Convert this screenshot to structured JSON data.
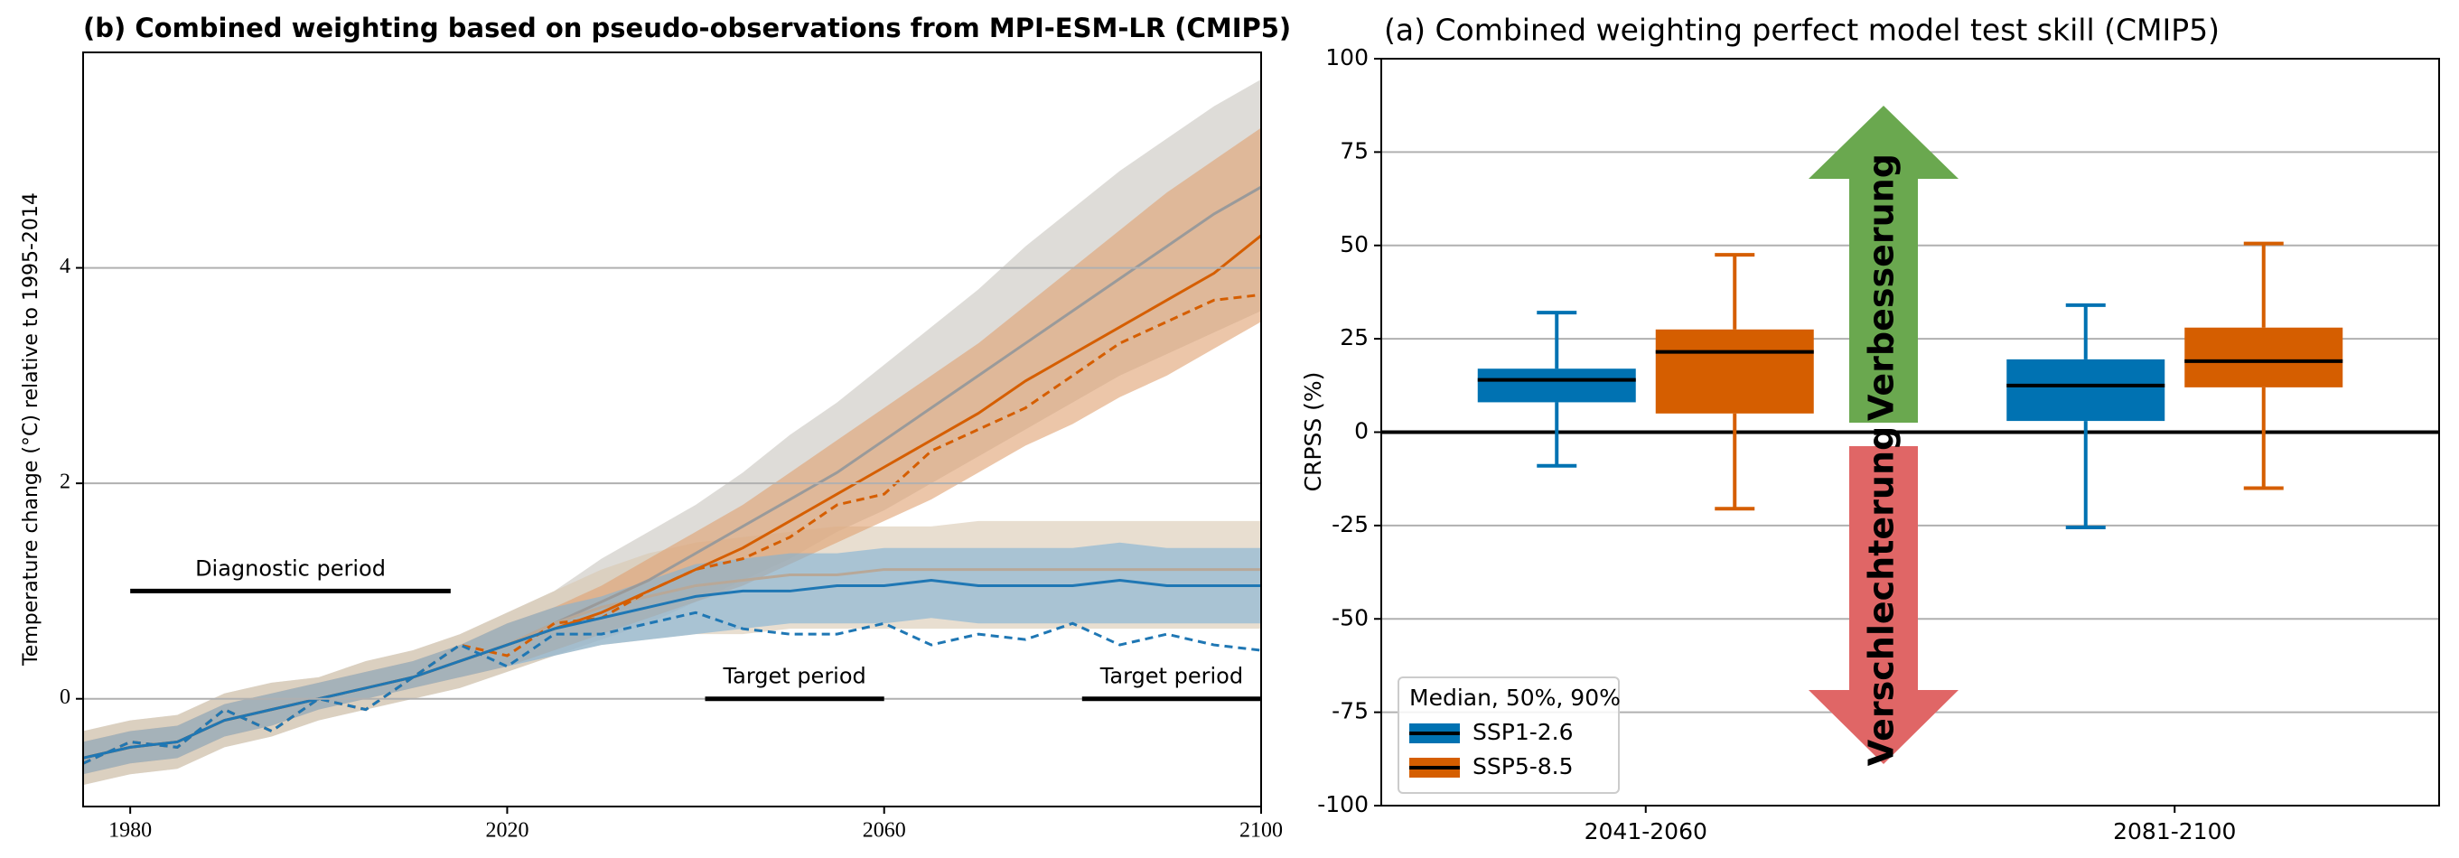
{
  "chart_data": [
    {
      "type": "line",
      "title": "(b) Combined weighting based on pseudo-observations from MPI-ESM-LR (CMIP5)",
      "y_label": "Temperature change (°C) relative to 1995-2014",
      "x": [
        1975,
        1980,
        1985,
        1990,
        1995,
        2000,
        2005,
        2010,
        2015,
        2020,
        2025,
        2030,
        2035,
        2040,
        2045,
        2050,
        2055,
        2060,
        2065,
        2070,
        2075,
        2080,
        2085,
        2090,
        2095,
        2100
      ],
      "xlim": [
        1975,
        2100
      ],
      "xticks": [
        1980,
        2020,
        2060,
        2100
      ],
      "ylim": [
        -1.0,
        6.0
      ],
      "yticks": [
        0,
        2,
        4
      ],
      "grid": true,
      "bands": [
        {
          "color": "#c8c4be",
          "lower": [
            -0.8,
            -0.7,
            -0.65,
            -0.45,
            -0.35,
            -0.2,
            -0.1,
            0.0,
            0.1,
            0.25,
            0.4,
            0.55,
            0.7,
            0.9,
            1.1,
            1.3,
            1.55,
            1.75,
            2.0,
            2.25,
            2.5,
            2.75,
            3.0,
            3.2,
            3.4,
            3.6
          ],
          "upper": [
            -0.3,
            -0.2,
            -0.15,
            0.05,
            0.15,
            0.2,
            0.35,
            0.45,
            0.6,
            0.8,
            1.0,
            1.3,
            1.55,
            1.8,
            2.1,
            2.45,
            2.75,
            3.1,
            3.45,
            3.8,
            4.2,
            4.55,
            4.9,
            5.2,
            5.5,
            5.75
          ]
        },
        {
          "color": "#d9c8b0",
          "lower": [
            -0.8,
            -0.7,
            -0.65,
            -0.45,
            -0.35,
            -0.2,
            -0.1,
            0.0,
            0.1,
            0.25,
            0.4,
            0.5,
            0.55,
            0.6,
            0.6,
            0.65,
            0.65,
            0.65,
            0.65,
            0.65,
            0.65,
            0.65,
            0.65,
            0.65,
            0.65,
            0.65
          ],
          "upper": [
            -0.3,
            -0.2,
            -0.15,
            0.05,
            0.15,
            0.2,
            0.35,
            0.45,
            0.6,
            0.8,
            1.0,
            1.2,
            1.35,
            1.45,
            1.5,
            1.55,
            1.6,
            1.6,
            1.6,
            1.65,
            1.65,
            1.65,
            1.65,
            1.65,
            1.65,
            1.65
          ]
        },
        {
          "color": "#e0a070",
          "lower": [
            -0.7,
            -0.6,
            -0.55,
            -0.35,
            -0.25,
            -0.1,
            0.0,
            0.1,
            0.2,
            0.3,
            0.45,
            0.6,
            0.75,
            0.9,
            1.05,
            1.25,
            1.45,
            1.65,
            1.85,
            2.1,
            2.35,
            2.55,
            2.8,
            3.0,
            3.25,
            3.5
          ],
          "upper": [
            -0.4,
            -0.3,
            -0.25,
            -0.05,
            0.05,
            0.15,
            0.25,
            0.35,
            0.5,
            0.7,
            0.85,
            1.05,
            1.3,
            1.55,
            1.8,
            2.1,
            2.4,
            2.7,
            3.0,
            3.3,
            3.65,
            4.0,
            4.35,
            4.7,
            5.0,
            5.3
          ]
        },
        {
          "color": "#7fb0d6",
          "lower": [
            -0.7,
            -0.6,
            -0.55,
            -0.35,
            -0.25,
            -0.1,
            0.0,
            0.1,
            0.2,
            0.3,
            0.4,
            0.5,
            0.55,
            0.6,
            0.65,
            0.7,
            0.7,
            0.7,
            0.75,
            0.7,
            0.7,
            0.7,
            0.7,
            0.7,
            0.7,
            0.7
          ],
          "upper": [
            -0.4,
            -0.3,
            -0.25,
            -0.05,
            0.05,
            0.15,
            0.25,
            0.35,
            0.5,
            0.7,
            0.85,
            0.95,
            1.1,
            1.25,
            1.3,
            1.35,
            1.35,
            1.4,
            1.4,
            1.4,
            1.4,
            1.4,
            1.45,
            1.4,
            1.4,
            1.4
          ]
        }
      ],
      "series": [
        {
          "color": "#9a9a9a",
          "dashed": false,
          "values": [
            -0.55,
            -0.45,
            -0.4,
            -0.2,
            -0.1,
            0.0,
            0.1,
            0.2,
            0.35,
            0.5,
            0.7,
            0.9,
            1.1,
            1.35,
            1.6,
            1.85,
            2.1,
            2.4,
            2.7,
            3.0,
            3.3,
            3.6,
            3.9,
            4.2,
            4.5,
            4.75
          ]
        },
        {
          "color": "#b8a898",
          "dashed": false,
          "values": [
            -0.55,
            -0.45,
            -0.4,
            -0.2,
            -0.1,
            0.0,
            0.1,
            0.2,
            0.35,
            0.5,
            0.7,
            0.85,
            0.95,
            1.05,
            1.1,
            1.15,
            1.15,
            1.2,
            1.2,
            1.2,
            1.2,
            1.2,
            1.2,
            1.2,
            1.2,
            1.2
          ]
        },
        {
          "color": "#d55e00",
          "dashed": false,
          "values": [
            -0.55,
            -0.45,
            -0.4,
            -0.2,
            -0.1,
            0.0,
            0.1,
            0.2,
            0.35,
            0.5,
            0.65,
            0.8,
            1.0,
            1.2,
            1.4,
            1.65,
            1.9,
            2.15,
            2.4,
            2.65,
            2.95,
            3.2,
            3.45,
            3.7,
            3.95,
            4.3
          ]
        },
        {
          "color": "#d55e00",
          "dashed": true,
          "values": [
            -0.6,
            -0.4,
            -0.45,
            -0.1,
            -0.3,
            0.0,
            -0.1,
            0.2,
            0.5,
            0.4,
            0.7,
            0.75,
            1.0,
            1.2,
            1.3,
            1.5,
            1.8,
            1.9,
            2.3,
            2.5,
            2.7,
            3.0,
            3.3,
            3.5,
            3.7,
            3.75
          ]
        },
        {
          "color": "#1f77b4",
          "dashed": false,
          "values": [
            -0.55,
            -0.45,
            -0.4,
            -0.2,
            -0.1,
            0.0,
            0.1,
            0.2,
            0.35,
            0.5,
            0.65,
            0.75,
            0.85,
            0.95,
            1.0,
            1.0,
            1.05,
            1.05,
            1.1,
            1.05,
            1.05,
            1.05,
            1.1,
            1.05,
            1.05,
            1.05
          ]
        },
        {
          "color": "#1f77b4",
          "dashed": true,
          "values": [
            -0.6,
            -0.4,
            -0.45,
            -0.1,
            -0.3,
            0.0,
            -0.1,
            0.2,
            0.5,
            0.3,
            0.6,
            0.6,
            0.7,
            0.8,
            0.65,
            0.6,
            0.6,
            0.7,
            0.5,
            0.6,
            0.55,
            0.7,
            0.5,
            0.6,
            0.5,
            0.45
          ]
        }
      ],
      "annotations": [
        {
          "text": "Diagnostic period",
          "x": [
            1980,
            2014
          ],
          "y": 1
        },
        {
          "text": "Target period",
          "x": [
            2041,
            2060
          ],
          "y": 0
        },
        {
          "text": "Target period",
          "x": [
            2081,
            2100
          ],
          "y": 0
        }
      ]
    },
    {
      "type": "box",
      "title": "(a) Combined weighting perfect model test skill (CMIP5)",
      "y_label": "CRPSS (%)",
      "categories": [
        "2041-2060",
        "2081-2100"
      ],
      "ylim": [
        -100,
        100
      ],
      "yticks": [
        100,
        75,
        50,
        25,
        0,
        -25,
        -50,
        -75,
        -100
      ],
      "grid": true,
      "hline": 0,
      "legend_title": "Median, 50%, 90%",
      "legend": "lower left",
      "series": [
        {
          "name": "SSP1-2.6",
          "color": "#0072b2",
          "values": [
            {
              "low": -9,
              "q1": 8,
              "median": 14,
              "q3": 17,
              "high": 32
            },
            {
              "low": -25.5,
              "q1": 3,
              "median": 12.5,
              "q3": 19.5,
              "high": 34
            }
          ]
        },
        {
          "name": "SSP5-8.5",
          "color": "#d55e00",
          "values": [
            {
              "low": -20.5,
              "q1": 5,
              "median": 21.5,
              "q3": 27.5,
              "high": 47.5
            },
            {
              "low": -15,
              "q1": 12,
              "median": 19,
              "q3": 28,
              "high": 50.5
            }
          ]
        }
      ],
      "arrows": [
        {
          "text": "Verbesserung",
          "color": "#6aa84f"
        },
        {
          "text": "Verschlechterung",
          "color": "#e06666"
        }
      ]
    }
  ]
}
